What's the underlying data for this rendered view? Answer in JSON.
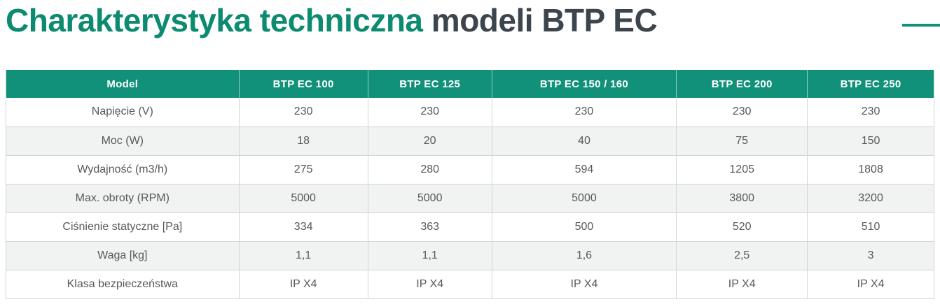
{
  "page": {
    "title": {
      "highlight": "Charakterystyka techniczna",
      "rest": " modeli BTP EC"
    }
  },
  "colors": {
    "accent_teal": "#11917A",
    "title_teal": "#0C8B70",
    "title_dark": "#3C454D",
    "row_stripe": "#F1F2F2",
    "border_gray": "#D2D5D6",
    "body_text": "#55595C",
    "header_text": "#FFFFFF"
  },
  "icons": {
    "accent_dash": "teal-horizontal-dash"
  },
  "table": {
    "header": [
      "Model",
      "BTP EC 100",
      "BTP EC 125",
      "BTP EC 150 / 160",
      "BTP EC 200",
      "BTP EC 250"
    ],
    "column_widths_pct": [
      25.1,
      13.9,
      13.35,
      19.9,
      14.1,
      13.65
    ],
    "rows": [
      {
        "label": "Napięcie (V)",
        "values": [
          "230",
          "230",
          "230",
          "230",
          "230"
        ]
      },
      {
        "label": "Moc (W)",
        "values": [
          "18",
          "20",
          "40",
          "75",
          "150"
        ]
      },
      {
        "label": "Wydajność (m3/h)",
        "values": [
          "275",
          "280",
          "594",
          "1205",
          "1808"
        ]
      },
      {
        "label": "Max. obroty (RPM)",
        "values": [
          "5000",
          "5000",
          "5000",
          "3800",
          "3200"
        ]
      },
      {
        "label": "Ciśnienie statyczne [Pa]",
        "values": [
          "334",
          "363",
          "500",
          "520",
          "510"
        ]
      },
      {
        "label": "Waga [kg]",
        "values": [
          "1,1",
          "1,1",
          "1,6",
          "2,5",
          "3"
        ]
      },
      {
        "label": "Klasa bezpieczeństwa",
        "values": [
          "IP X4",
          "IP X4",
          "IP X4",
          "IP X4",
          "IP X4"
        ]
      }
    ]
  }
}
